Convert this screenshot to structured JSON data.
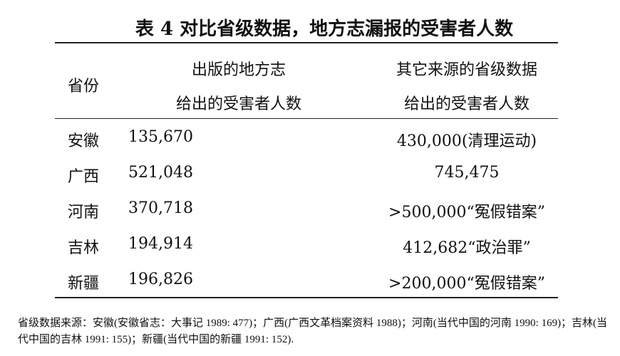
{
  "title": "表 4  对比省级数据，地方志漏报的受害者人数",
  "header": {
    "col1": "省份",
    "col2_line1": "出版的地方志",
    "col2_line2": "给出的受害者人数",
    "col3_line1": "其它来源的省级数据",
    "col3_line2": "给出的受害者人数"
  },
  "rows": [
    {
      "province": "安徽",
      "gazetteer": "135,670",
      "other": "430,000(清理运动)"
    },
    {
      "province": "广西",
      "gazetteer": "521,048",
      "other": "745,475"
    },
    {
      "province": "河南",
      "gazetteer": "370,718",
      "other": ">500,000“冤假错案”"
    },
    {
      "province": "吉林",
      "gazetteer": "194,914",
      "other": "412,682“政治罪”"
    },
    {
      "province": "新疆",
      "gazetteer": "196,826",
      "other": ">200,000“冤假错案”"
    }
  ],
  "note": "省级数据来源：安徽(安徽省志：大事记 1989: 477)；广西(广西文革档案资料 1988)；河南(当代中国的河南 1990: 169)；吉林(当代中国的吉林 1991: 155)；新疆(当代中国的新疆 1991: 152)."
}
